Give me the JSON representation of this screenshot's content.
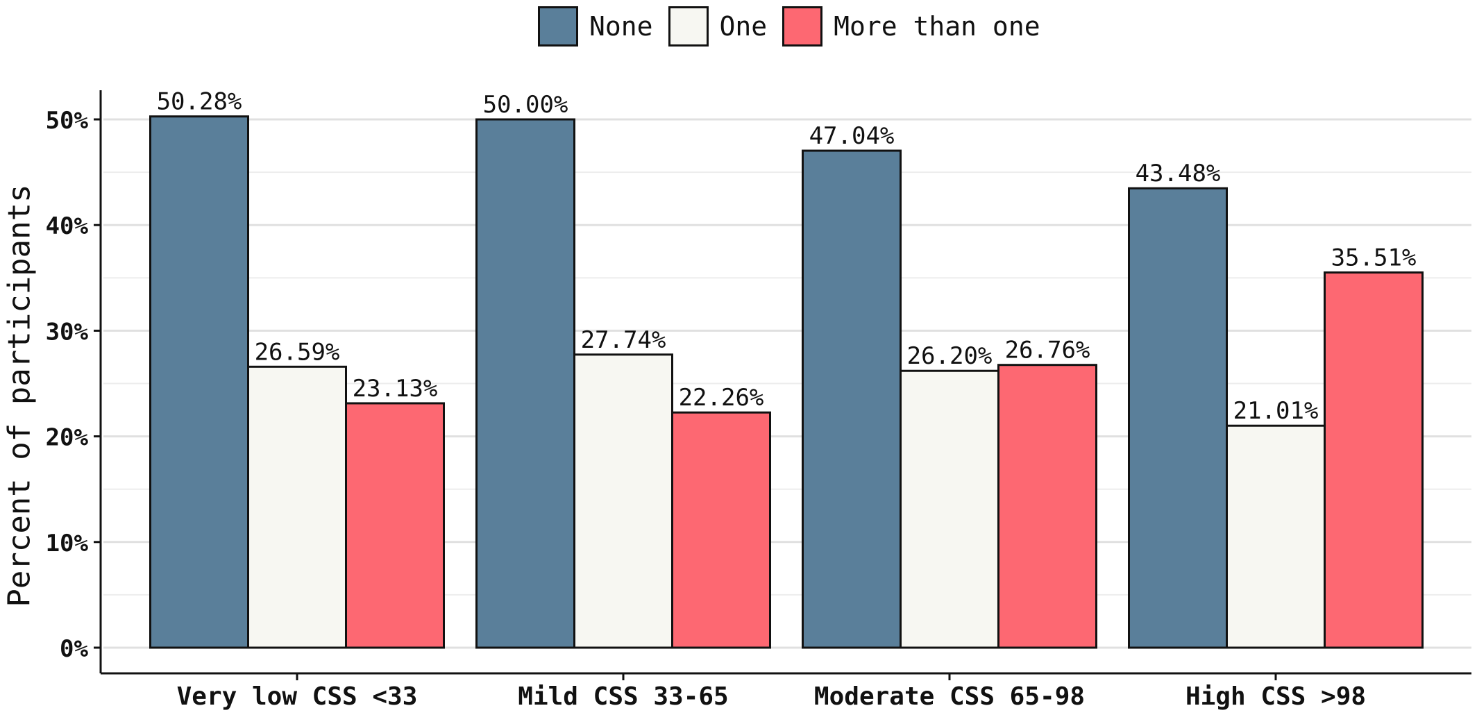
{
  "chart_data": {
    "type": "bar",
    "categories": [
      "Very low CSS <33",
      "Mild CSS 33-65",
      "Moderate CSS 65-98",
      "High CSS >98"
    ],
    "series": [
      {
        "name": "None",
        "color": "#5a7f9a",
        "values": [
          50.28,
          50.0,
          47.04,
          43.48
        ],
        "labels": [
          "50.28%",
          "50.00%",
          "47.04%",
          "43.48%"
        ]
      },
      {
        "name": "One",
        "color": "#f7f7f2",
        "values": [
          26.59,
          27.74,
          26.2,
          21.01
        ],
        "labels": [
          "26.59%",
          "27.74%",
          "26.20%",
          "21.01%"
        ]
      },
      {
        "name": "More than one",
        "color": "#fd6872",
        "values": [
          23.13,
          22.26,
          26.76,
          35.51
        ],
        "labels": [
          "23.13%",
          "22.26%",
          "26.76%",
          "35.51%"
        ]
      }
    ],
    "title": "",
    "xlabel": "",
    "ylabel": "Percent of participants",
    "ylim": [
      0,
      52
    ],
    "yticks": [
      0,
      10,
      20,
      30,
      40,
      50
    ],
    "ytick_labels": [
      "0%",
      "10%",
      "20%",
      "30%",
      "40%",
      "50%"
    ],
    "grid": "horizontal",
    "legend_position": "top"
  }
}
